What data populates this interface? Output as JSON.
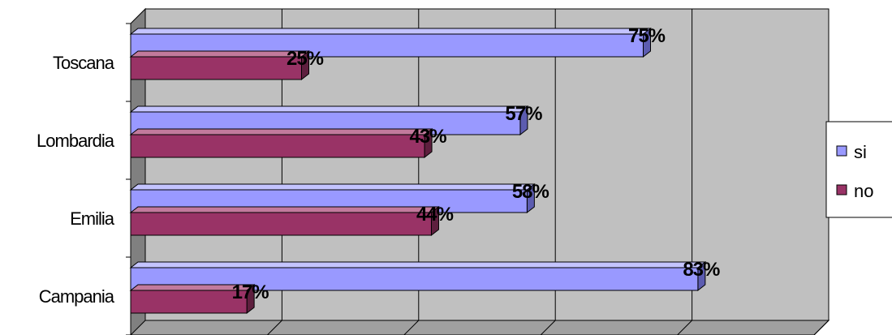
{
  "colors": {
    "wall": "#c0c0c0",
    "side_wall": "#808080",
    "floor": "#a0a0a0",
    "grid": "#000000",
    "si": "#9999ff",
    "si_top": "#c4c4ff",
    "si_side": "#5c5cb0",
    "no": "#993366",
    "no_top": "#c27a9c",
    "no_side": "#5e1f3e"
  },
  "chart_data": {
    "type": "bar",
    "orientation": "horizontal",
    "categories": [
      "Toscana",
      "Lombardia",
      "Emilia",
      "Campania"
    ],
    "series": [
      {
        "name": "si",
        "values": [
          75,
          57,
          58,
          83
        ],
        "labels": [
          "75%",
          "57%",
          "58%",
          "83%"
        ]
      },
      {
        "name": "no",
        "values": [
          25,
          43,
          44,
          17
        ],
        "labels": [
          "25%",
          "43%",
          "44%",
          "17%"
        ]
      }
    ],
    "xlim": [
      0,
      100
    ],
    "grid": true,
    "legend": "right"
  }
}
